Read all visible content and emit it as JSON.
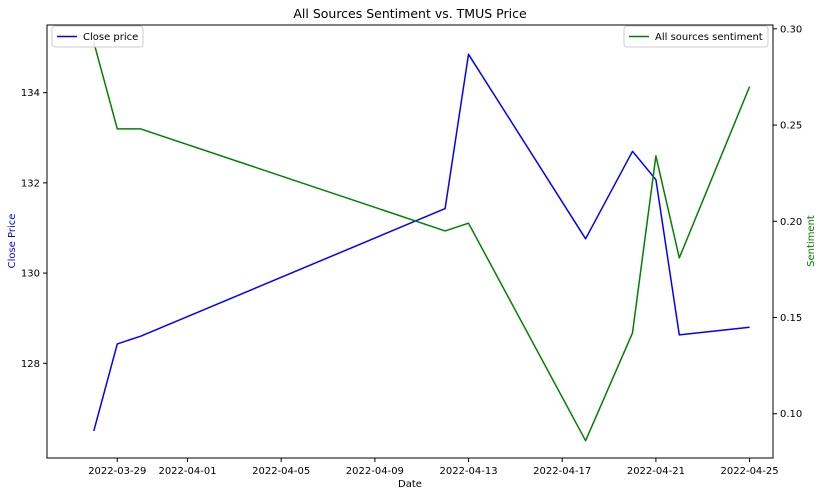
{
  "chart_data": {
    "type": "line",
    "title": "All Sources Sentiment vs. TMUS Price",
    "xlabel": "Date",
    "ylabel_left": "Close Price",
    "ylabel_right": "Sentiment",
    "xlim": [
      "2022-03-26",
      "2022-04-26"
    ],
    "ylim_left": [
      125.9,
      135.5
    ],
    "ylim_right": [
      0.077,
      0.302
    ],
    "x_ticks": [
      "2022-03-29",
      "2022-04-01",
      "2022-04-05",
      "2022-04-09",
      "2022-04-13",
      "2022-04-17",
      "2022-04-21",
      "2022-04-25"
    ],
    "y_ticks_left": [
      "128",
      "130",
      "132",
      "134"
    ],
    "y_ticks_right": [
      "0.10",
      "0.15",
      "0.20",
      "0.25",
      "0.30"
    ],
    "colors": {
      "left_axis_label": "#0000ff",
      "right_axis_label": "#008000"
    },
    "series": [
      {
        "name": "Close price",
        "axis": "left",
        "color": "#0000ff",
        "x": [
          "2022-03-28",
          "2022-03-29",
          "2022-03-30",
          "2022-04-12",
          "2022-04-13",
          "2022-04-18",
          "2022-04-20",
          "2022-04-21",
          "2022-04-22",
          "2022-04-25"
        ],
        "y": [
          126.5,
          128.43,
          128.6,
          131.43,
          134.85,
          130.76,
          132.7,
          132.07,
          128.63,
          128.8
        ]
      },
      {
        "name": "All sources sentiment",
        "axis": "right",
        "color": "#008000",
        "x": [
          "2022-03-28",
          "2022-03-29",
          "2022-03-30",
          "2022-04-12",
          "2022-04-13",
          "2022-04-18",
          "2022-04-20",
          "2022-04-21",
          "2022-04-22",
          "2022-04-25"
        ],
        "y": [
          0.293,
          0.248,
          0.248,
          0.195,
          0.199,
          0.086,
          0.142,
          0.234,
          0.181,
          0.27
        ]
      }
    ],
    "legends": [
      {
        "placement": "upper-left",
        "entries": [
          "Close price"
        ]
      },
      {
        "placement": "upper-right",
        "entries": [
          "All sources sentiment"
        ]
      }
    ],
    "grid": false
  }
}
